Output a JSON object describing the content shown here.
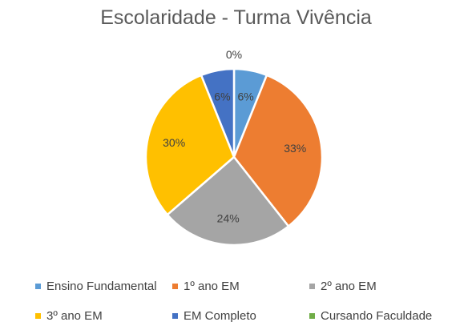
{
  "chart_data": {
    "type": "pie",
    "title": "Escolaridade - Turma Vivência",
    "categories": [
      "Ensino Fundamental",
      "1º ano EM",
      "2º ano EM",
      "3º ano EM",
      "EM Completo",
      "Cursando Faculdade"
    ],
    "values": [
      6,
      33,
      24,
      30,
      6,
      0
    ],
    "data_labels": [
      "6%",
      "33%",
      "24%",
      "30%",
      "6%",
      "0%"
    ],
    "colors": [
      "#5B9BD5",
      "#ED7D31",
      "#A5A5A5",
      "#FFC000",
      "#4472C4",
      "#70AD47"
    ],
    "legend_position": "bottom",
    "start_angle_deg": 0,
    "direction": "clockwise"
  }
}
